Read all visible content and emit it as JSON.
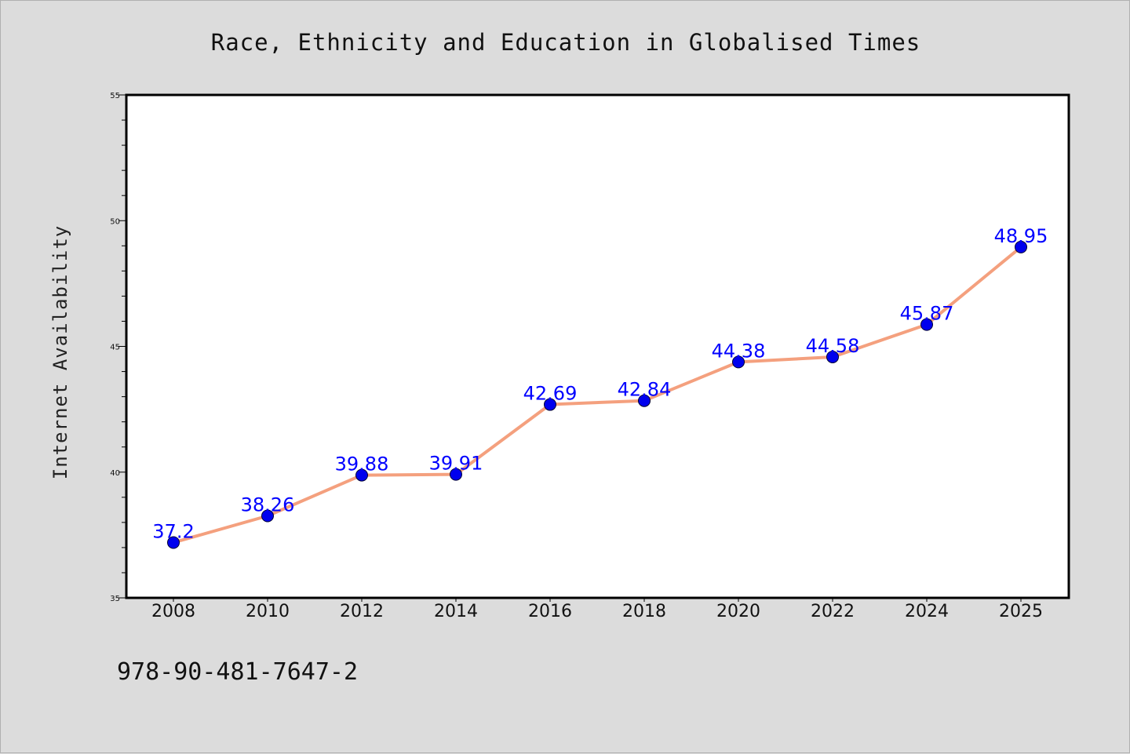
{
  "chart_data": {
    "type": "line",
    "title": "Race, Ethnicity and Education in Globalised Times",
    "xlabel": "",
    "ylabel": "Internet Availability",
    "categories": [
      "2008",
      "2010",
      "2012",
      "2014",
      "2016",
      "2018",
      "2020",
      "2022",
      "2024",
      "2025"
    ],
    "series": [
      {
        "values": [
          37.2,
          38.26,
          39.88,
          39.91,
          42.69,
          42.84,
          44.38,
          44.58,
          45.87,
          48.95
        ]
      }
    ],
    "data_labels": [
      "37.2",
      "38.26",
      "39.88",
      "39.91",
      "42.69",
      "42.84",
      "44.38",
      "44.58",
      "45.87",
      "48.95"
    ],
    "ylim": [
      35,
      55
    ],
    "yticks": [
      "35",
      "40",
      "45",
      "50",
      "55"
    ],
    "grid": false,
    "colors": {
      "line": "#f4a07e",
      "marker": "#0000ee",
      "label": "#0000ff",
      "background": "#dcdcdc",
      "plot_background": "#ffffff"
    }
  },
  "footer_text": "978-90-481-7647-2"
}
